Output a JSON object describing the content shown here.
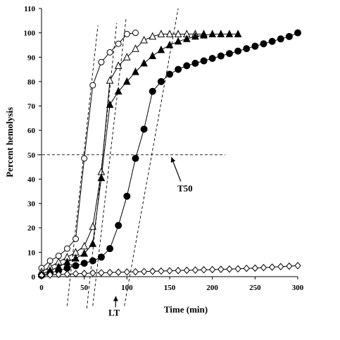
{
  "chart_data": {
    "type": "scatter",
    "xlabel": "Time (min)",
    "ylabel": "Percent hemolysis",
    "xlim": [
      0,
      300
    ],
    "ylim": [
      0,
      110
    ],
    "xticks": [
      0,
      50,
      100,
      150,
      200,
      250,
      300
    ],
    "yticks": [
      0,
      10,
      20,
      30,
      40,
      50,
      60,
      70,
      80,
      90,
      100,
      110
    ],
    "grid": false,
    "legend": "none",
    "series": [
      {
        "marker": "open-circle",
        "x": [
          0,
          10,
          20,
          30,
          40,
          50,
          60,
          70,
          80,
          90,
          100,
          110
        ],
        "y": [
          3.5,
          6.5,
          8.5,
          11.5,
          15.5,
          48.5,
          78.5,
          88,
          92,
          95.5,
          99.5,
          100
        ]
      },
      {
        "marker": "open-triangle",
        "x": [
          0,
          10,
          20,
          30,
          40,
          50,
          60,
          70,
          80,
          90,
          100,
          110,
          120,
          130,
          140,
          150,
          160,
          170,
          180,
          190
        ],
        "y": [
          2,
          4,
          6,
          8,
          10,
          12.5,
          20.5,
          43,
          80.5,
          86.5,
          90,
          93.5,
          97,
          98.5,
          99.5,
          99.5,
          99.5,
          99.5,
          99.5,
          99.5
        ]
      },
      {
        "marker": "filled-triangle",
        "x": [
          0,
          10,
          20,
          30,
          40,
          50,
          60,
          70,
          80,
          90,
          100,
          110,
          120,
          130,
          140,
          150,
          160,
          170,
          180,
          190,
          200,
          210,
          220,
          230
        ],
        "y": [
          1,
          2.5,
          4,
          6,
          7.5,
          9.5,
          13.5,
          40.5,
          70.5,
          76,
          80,
          84,
          87.5,
          90.5,
          93,
          95,
          96.5,
          97.5,
          98.5,
          99,
          99.5,
          99.5,
          99.5,
          99.5
        ]
      },
      {
        "marker": "filled-circle",
        "x": [
          0,
          10,
          20,
          30,
          40,
          50,
          60,
          70,
          80,
          90,
          100,
          110,
          120,
          130,
          140,
          150,
          160,
          170,
          180,
          190,
          200,
          210,
          220,
          230,
          240,
          250,
          260,
          270,
          280,
          290,
          300
        ],
        "y": [
          0.5,
          1.5,
          2.5,
          3.5,
          4.5,
          5.5,
          6.5,
          8,
          11.5,
          21,
          33,
          48.5,
          60.5,
          76,
          80,
          83,
          85,
          86.5,
          87.5,
          88.5,
          89.5,
          90.5,
          91.5,
          92.5,
          93.5,
          94.5,
          95.5,
          96.5,
          97.5,
          98.5,
          100
        ]
      },
      {
        "marker": "open-diamond",
        "x": [
          0,
          10,
          20,
          30,
          40,
          50,
          60,
          70,
          80,
          90,
          100,
          110,
          120,
          130,
          140,
          150,
          160,
          170,
          180,
          190,
          200,
          210,
          220,
          230,
          240,
          250,
          260,
          270,
          280,
          290,
          300
        ],
        "y": [
          0.5,
          0.7,
          0.9,
          1.0,
          1.2,
          1.3,
          1.5,
          1.6,
          1.7,
          1.8,
          1.9,
          2.0,
          2.1,
          2.2,
          2.3,
          2.4,
          2.5,
          2.6,
          2.7,
          2.8,
          2.9,
          3.0,
          3.1,
          3.2,
          3.4,
          3.5,
          3.7,
          3.9,
          4.1,
          4.3,
          4.5
        ]
      }
    ],
    "reference_lines": [
      {
        "x1": -5,
        "y1": 50,
        "x2": 215,
        "y2": 50,
        "style": "dashed"
      },
      {
        "x1": 30,
        "y1": -12,
        "x2": 66,
        "y2": 103,
        "style": "dashed"
      },
      {
        "x1": 53,
        "y1": -13,
        "x2": 88,
        "y2": 104,
        "style": "dashed"
      },
      {
        "x1": 60,
        "y1": -12,
        "x2": 99,
        "y2": 106,
        "style": "dashed"
      },
      {
        "x1": 97,
        "y1": -12,
        "x2": 160,
        "y2": 110,
        "style": "dashed"
      }
    ],
    "annotations": [
      {
        "text": "T50",
        "x": 168,
        "y": 35,
        "arrow_to": [
          152,
          49
        ]
      },
      {
        "text": "LT",
        "x": 85,
        "y": -16,
        "arrow_to": [
          87,
          -8
        ]
      }
    ]
  }
}
